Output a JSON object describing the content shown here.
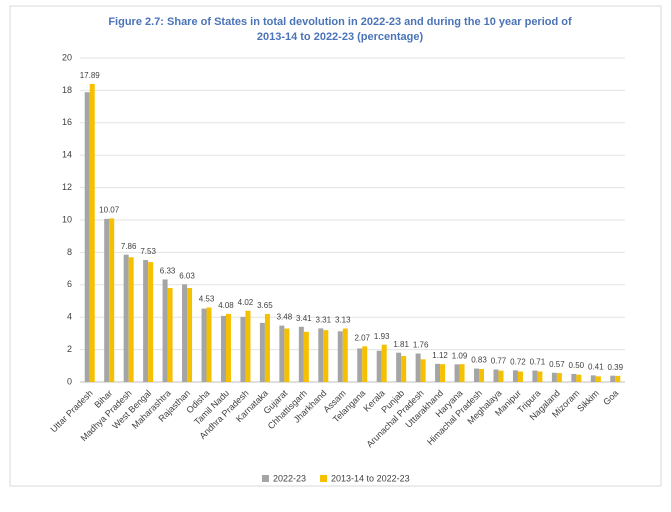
{
  "chart_data": {
    "type": "bar",
    "title": [
      "Figure 2.7: Share of States in total devolution in 2022-23 and during the 10 year period of",
      "2013-14 to 2022-23 (percentage)"
    ],
    "categories": [
      "Uttar Pradesh",
      "Bihar",
      "Madhya Pradesh",
      "West Bengal",
      "Maharashtra",
      "Rajasthan",
      "Odisha",
      "Tamil Nadu",
      "Andhra Pradesh",
      "Karnataka",
      "Gujarat",
      "Chhattisgarh",
      "Jharkhand",
      "Assam",
      "Telangana",
      "Kerala",
      "Punjab",
      "Arunachal Pradesh",
      "Uttarakhand",
      "Haryana",
      "Himachal Pradesh",
      "Meghalaya",
      "Manipur",
      "Tripura",
      "Nagaland",
      "Mizoram",
      "Sikkim",
      "Goa"
    ],
    "series": [
      {
        "name": "2022-23",
        "color": "#a5a5a5",
        "values": [
          17.89,
          10.07,
          7.86,
          7.53,
          6.33,
          6.03,
          4.53,
          4.08,
          4.02,
          3.65,
          3.48,
          3.41,
          3.31,
          3.13,
          2.07,
          1.93,
          1.81,
          1.76,
          1.12,
          1.09,
          0.83,
          0.77,
          0.72,
          0.71,
          0.57,
          0.5,
          0.41,
          0.39
        ],
        "value_labels": [
          "17.89",
          "10.07",
          "7.86",
          "7.53",
          "6.33",
          "6.03",
          "4.53",
          "4.08",
          "4.02",
          "3.65",
          "3.48",
          "3.41",
          "3.31",
          "3.13",
          "2.07",
          "1.93",
          "1.81",
          "1.76",
          "1.12",
          "1.09",
          "0.83",
          "0.77",
          "0.72",
          "0.71",
          "0.57",
          "0.50",
          "0.41",
          "0.39"
        ]
      },
      {
        "name": "2013-14 to 2022-23",
        "color": "#f5c000",
        "values": [
          18.4,
          10.1,
          7.7,
          7.4,
          5.8,
          5.8,
          4.6,
          4.2,
          4.4,
          4.2,
          3.3,
          3.1,
          3.2,
          3.3,
          2.2,
          2.3,
          1.6,
          1.4,
          1.1,
          1.1,
          0.8,
          0.7,
          0.65,
          0.65,
          0.55,
          0.45,
          0.35,
          0.38
        ]
      }
    ],
    "ylim": [
      0,
      20
    ],
    "yticks": [
      0,
      2,
      4,
      6,
      8,
      10,
      12,
      14,
      16,
      18,
      20
    ],
    "grid": true
  }
}
